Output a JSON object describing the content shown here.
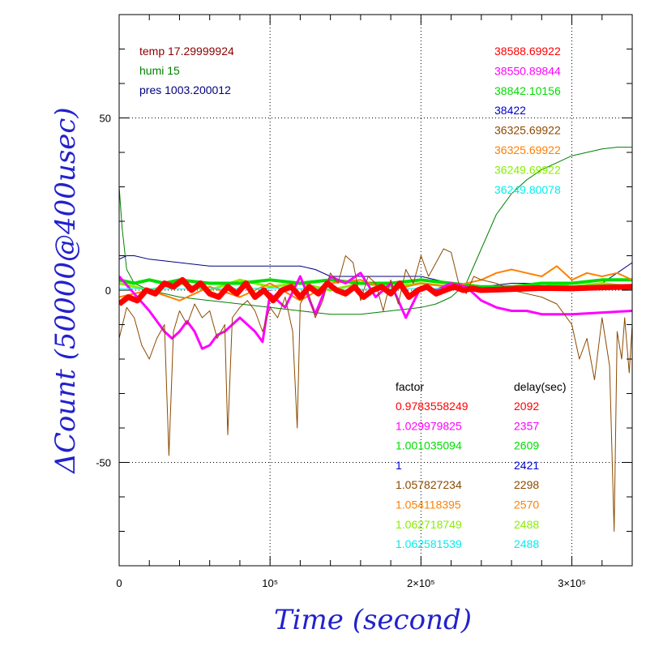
{
  "colors": {
    "red": "#ff0000",
    "magenta": "#ff00ff",
    "green": "#00dd00",
    "blue": "#0000cc",
    "brown": "#8b4a00",
    "orange": "#ff8000",
    "lime": "#88ee00",
    "cyan": "#00eeee",
    "darkred": "#8b0000",
    "darkgreen": "#008000",
    "navy": "#000080",
    "axis_title": "#2222cc"
  },
  "chart_data": {
    "type": "line",
    "xlabel": "Time (second)",
    "ylabel": "ΔCount (50000@400usec)",
    "xlim": [
      0,
      340000
    ],
    "ylim": [
      -80,
      80
    ],
    "grid": "dotted",
    "x_tick_labels": [
      {
        "x": 0,
        "label": "0"
      },
      {
        "x": 100000,
        "label": "10⁵"
      },
      {
        "x": 200000,
        "label": "2×10⁵"
      },
      {
        "x": 300000,
        "label": "3×10⁵"
      }
    ],
    "y_tick_labels": [
      {
        "y": 50,
        "label": "50"
      },
      {
        "y": 0,
        "label": "0"
      },
      {
        "y": -50,
        "label": "-50"
      }
    ],
    "env_legend": [
      {
        "text": "temp 17.29999924",
        "color": "#8b0000"
      },
      {
        "text": "humi 15",
        "color": "#008000"
      },
      {
        "text": "pres 1003.200012",
        "color": "#000080"
      }
    ],
    "value_legend": [
      {
        "text": "38588.69922",
        "color": "#ff0000"
      },
      {
        "text": "38550.89844",
        "color": "#ff00ff"
      },
      {
        "text": "38842.10156",
        "color": "#00dd00"
      },
      {
        "text": "38422",
        "color": "#0000cc"
      },
      {
        "text": "36325.69922",
        "color": "#8b4a00"
      },
      {
        "text": "36325.69922",
        "color": "#ff8000"
      },
      {
        "text": "36249.69922",
        "color": "#88ee00"
      },
      {
        "text": "36249.80078",
        "color": "#00eeee"
      }
    ],
    "factor_table": {
      "factor_header": "factor",
      "delay_header": "delay(sec)",
      "rows": [
        {
          "factor": "0.9783558249",
          "delay": "2092",
          "color": "#ff0000"
        },
        {
          "factor": "1.029979825",
          "delay": "2357",
          "color": "#ff00ff"
        },
        {
          "factor": "1.001035094",
          "delay": "2609",
          "color": "#00dd00"
        },
        {
          "factor": "1",
          "delay": "2421",
          "color": "#0000cc"
        },
        {
          "factor": "1.057827234",
          "delay": "2298",
          "color": "#8b4a00"
        },
        {
          "factor": "1.054118395",
          "delay": "2570",
          "color": "#ff8000"
        },
        {
          "factor": "1.062718749",
          "delay": "2488",
          "color": "#88ee00"
        },
        {
          "factor": "1.062581539",
          "delay": "2488",
          "color": "#00eeee"
        }
      ]
    },
    "series": [
      {
        "key": "green_env",
        "color": "#008000",
        "width": 1,
        "x": [
          0,
          2000,
          5000,
          10000,
          20000,
          40000,
          60000,
          80000,
          100000,
          120000,
          140000,
          160000,
          180000,
          200000,
          210000,
          220000,
          230000,
          240000,
          250000,
          260000,
          270000,
          280000,
          290000,
          300000,
          310000,
          320000,
          330000,
          340000
        ],
        "y": [
          30,
          18,
          6,
          2,
          0,
          -2,
          -3,
          -4,
          -5,
          -6,
          -7,
          -7,
          -6,
          -5,
          -4,
          -2,
          2,
          12,
          22,
          28,
          32,
          35,
          37,
          39,
          40,
          41,
          41.5,
          41.5
        ]
      },
      {
        "key": "navy_env",
        "color": "#000080",
        "width": 1,
        "x": [
          0,
          5000,
          10000,
          20000,
          40000,
          60000,
          80000,
          100000,
          120000,
          130000,
          140000,
          160000,
          180000,
          200000,
          220000,
          240000,
          260000,
          280000,
          300000,
          320000,
          330000,
          340000
        ],
        "y": [
          9,
          10,
          10,
          9,
          8,
          7,
          7,
          7,
          7,
          6,
          4,
          4,
          4,
          4,
          2,
          1,
          2,
          2,
          1,
          2,
          5,
          8
        ]
      },
      {
        "key": "lime",
        "color": "#88ee00",
        "width": 3,
        "x": [
          0,
          20000,
          40000,
          60000,
          80000,
          100000,
          120000,
          140000,
          160000,
          180000,
          200000,
          220000,
          240000,
          260000,
          280000,
          300000,
          320000,
          340000
        ],
        "y": [
          2,
          0,
          2,
          0,
          3,
          1,
          2,
          0,
          2,
          1,
          2,
          1,
          0,
          1,
          2,
          1,
          2,
          1
        ]
      },
      {
        "key": "green",
        "color": "#00dd00",
        "width": 4,
        "x": [
          0,
          10000,
          20000,
          30000,
          40000,
          60000,
          80000,
          100000,
          120000,
          140000,
          160000,
          180000,
          200000,
          220000,
          240000,
          260000,
          280000,
          300000,
          320000,
          340000
        ],
        "y": [
          3,
          2,
          3,
          2,
          3,
          2,
          2,
          3,
          2,
          3,
          2,
          2,
          3,
          2,
          1,
          1,
          2,
          2,
          3,
          3
        ]
      },
      {
        "key": "orange",
        "color": "#ff8000",
        "width": 2,
        "x": [
          0,
          20000,
          40000,
          60000,
          80000,
          100000,
          120000,
          140000,
          160000,
          180000,
          200000,
          220000,
          240000,
          250000,
          260000,
          270000,
          280000,
          290000,
          300000,
          310000,
          320000,
          330000,
          340000
        ],
        "y": [
          -2,
          0,
          -3,
          1,
          -2,
          2,
          -3,
          2,
          3,
          0,
          2,
          1,
          3,
          5,
          6,
          5,
          4,
          7,
          3,
          5,
          4,
          5,
          3
        ]
      },
      {
        "key": "magenta",
        "color": "#ff00ff",
        "width": 3,
        "x": [
          0,
          10000,
          20000,
          30000,
          35000,
          40000,
          45000,
          50000,
          55000,
          60000,
          65000,
          70000,
          75000,
          80000,
          85000,
          90000,
          95000,
          100000,
          110000,
          120000,
          130000,
          140000,
          150000,
          160000,
          170000,
          180000,
          190000,
          200000,
          210000,
          220000,
          230000,
          240000,
          250000,
          260000,
          270000,
          280000,
          300000,
          320000,
          340000
        ],
        "y": [
          4,
          -1,
          -6,
          -12,
          -14,
          -12,
          -9,
          -12,
          -17,
          -16,
          -13,
          -12,
          -10,
          -8,
          -10,
          -12,
          -15,
          -1,
          -5,
          4,
          -7,
          4,
          2,
          5,
          -2,
          2,
          -8,
          1,
          0,
          2,
          1,
          -3,
          -5,
          -6,
          -6,
          -7,
          -7,
          -6.5,
          -6
        ]
      },
      {
        "key": "brown",
        "color": "#8b4a00",
        "width": 1,
        "x": [
          0,
          5000,
          10000,
          15000,
          20000,
          25000,
          30000,
          33000,
          36000,
          40000,
          45000,
          50000,
          55000,
          60000,
          65000,
          70000,
          72000,
          75000,
          80000,
          85000,
          90000,
          95000,
          100000,
          105000,
          110000,
          115000,
          118000,
          120000,
          125000,
          130000,
          135000,
          140000,
          145000,
          150000,
          155000,
          160000,
          165000,
          170000,
          175000,
          180000,
          185000,
          190000,
          195000,
          200000,
          205000,
          210000,
          215000,
          220000,
          225000,
          230000,
          235000,
          240000,
          250000,
          260000,
          270000,
          280000,
          290000,
          300000,
          305000,
          310000,
          315000,
          320000,
          325000,
          328000,
          330000,
          333000,
          335000,
          338000,
          340000
        ],
        "y": [
          -14,
          -5,
          -8,
          -16,
          -20,
          -14,
          -10,
          -48,
          -12,
          -6,
          -10,
          -4,
          -8,
          -6,
          -14,
          -10,
          -42,
          -8,
          -5,
          -3,
          -6,
          -12,
          -5,
          -8,
          -2,
          -12,
          -40,
          -4,
          0,
          -8,
          -3,
          5,
          2,
          10,
          8,
          -3,
          4,
          2,
          -6,
          3,
          -4,
          6,
          2,
          10,
          4,
          8,
          12,
          11,
          2,
          -1,
          4,
          3,
          2,
          0,
          -1,
          -2,
          -4,
          -10,
          -20,
          -14,
          -26,
          -8,
          -22,
          -70,
          -12,
          -20,
          -8,
          -24,
          -10
        ]
      },
      {
        "key": "cyan",
        "color": "#00eeee",
        "width": 1,
        "x": [
          0,
          50000,
          100000,
          150000,
          200000,
          250000,
          300000,
          340000
        ],
        "y": [
          0.5,
          0.3,
          0.6,
          0.2,
          0.5,
          0.3,
          0.6,
          0.4
        ]
      },
      {
        "key": "red",
        "color": "#ff0000",
        "width": 7,
        "x": [
          0,
          6000,
          12000,
          18000,
          24000,
          30000,
          36000,
          42000,
          48000,
          54000,
          60000,
          66000,
          72000,
          78000,
          84000,
          90000,
          96000,
          102000,
          108000,
          114000,
          120000,
          126000,
          132000,
          138000,
          144000,
          150000,
          156000,
          162000,
          168000,
          174000,
          180000,
          186000,
          192000,
          198000,
          204000,
          210000,
          216000,
          222000,
          228000,
          234000,
          240000,
          260000,
          280000,
          300000,
          320000,
          340000
        ],
        "y": [
          -4,
          -2,
          -3,
          0,
          -1,
          2,
          1,
          3,
          0,
          2,
          -1,
          -2,
          1,
          -1,
          2,
          -2,
          0,
          -3,
          0,
          1,
          -2,
          1,
          -1,
          2,
          0,
          -1,
          1,
          -2,
          0,
          1,
          -1,
          2,
          -2,
          0,
          1,
          -1,
          0,
          1,
          0,
          0.5,
          0,
          0.3,
          0.6,
          0.5,
          0.8,
          1
        ]
      }
    ]
  }
}
